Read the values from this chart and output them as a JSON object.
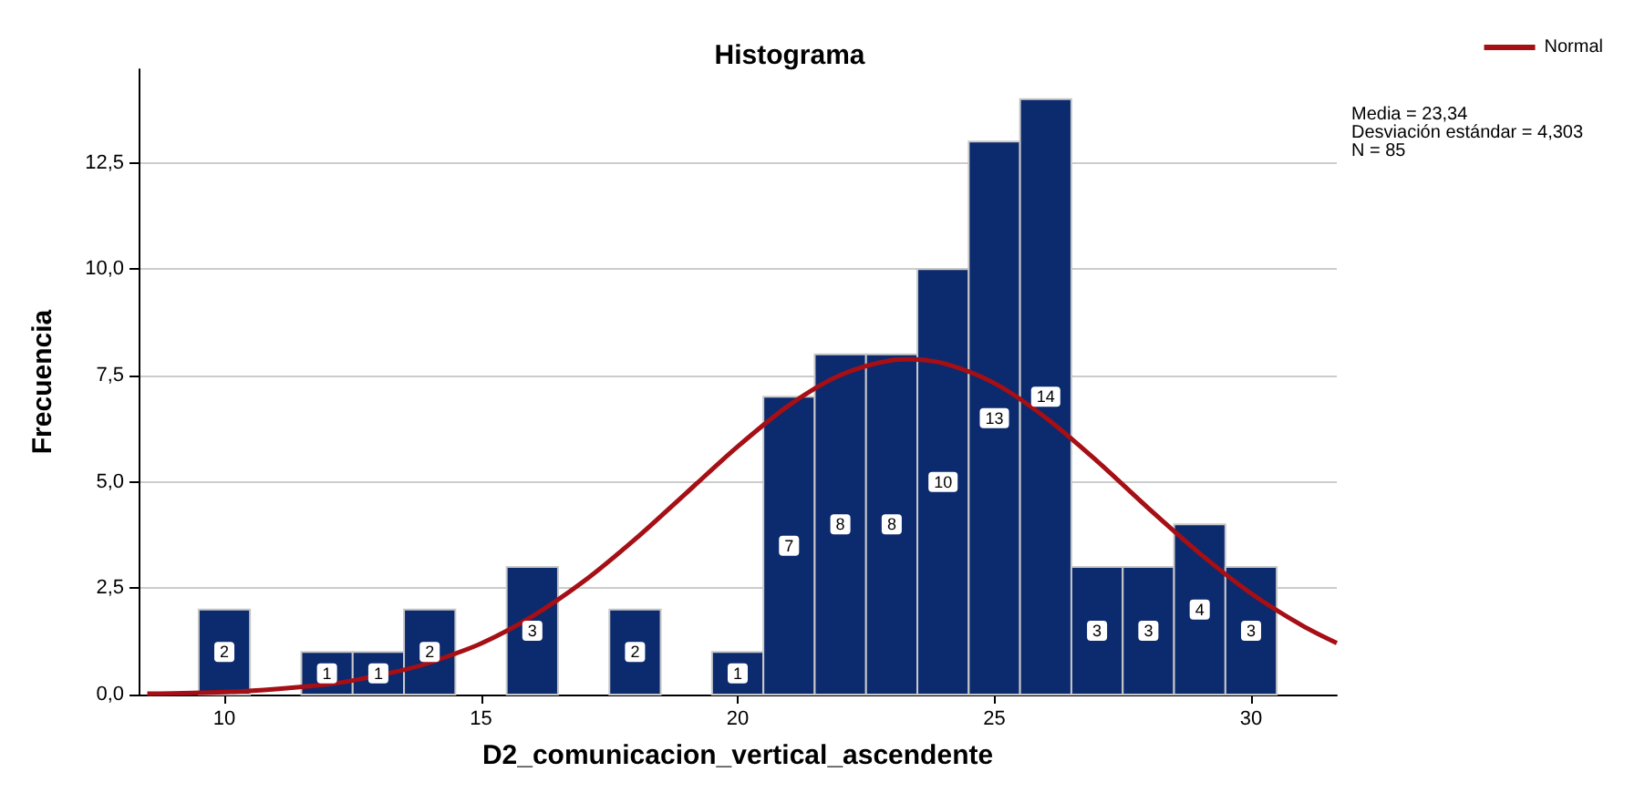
{
  "chart_data": {
    "type": "histogram",
    "title": "Histograma",
    "xlabel": "D2_comunicacion_vertical_ascendente",
    "ylabel": "Frecuencia",
    "bins": [
      9.5,
      10.5,
      11.5,
      12.5,
      13.5,
      14.5,
      15.5,
      16.5,
      17.5,
      18.5,
      19.5,
      20.5,
      21.5,
      22.5,
      23.5,
      24.5,
      25.5,
      26.5,
      27.5,
      28.5,
      29.5,
      30.5
    ],
    "values": [
      2,
      0,
      1,
      1,
      2,
      0,
      3,
      0,
      2,
      0,
      1,
      7,
      8,
      8,
      10,
      13,
      14,
      3,
      3,
      4,
      3
    ],
    "value_labels": [
      "2",
      null,
      "1",
      "1",
      "2",
      null,
      "3",
      null,
      "2",
      null,
      "1",
      "7",
      "8",
      "8",
      "10",
      "13",
      "14",
      "3",
      "3",
      "4",
      "3"
    ],
    "color": "#0c2a6e",
    "series": [
      {
        "type": "line",
        "name": "Normal",
        "color": "#a50f15",
        "x": [
          8.5,
          10,
          11,
          12,
          12.5,
          13.5,
          14,
          15,
          16,
          17,
          18,
          19,
          20,
          21,
          22,
          23,
          23.34,
          24,
          25,
          26,
          27,
          28,
          29,
          30,
          31,
          31.67
        ],
        "values": [
          0.02,
          0.06,
          0.13,
          0.24,
          0.33,
          0.58,
          0.75,
          1.2,
          1.84,
          2.66,
          3.65,
          4.74,
          5.83,
          6.8,
          7.51,
          7.86,
          7.88,
          7.79,
          7.32,
          6.51,
          5.49,
          4.38,
          3.32,
          2.38,
          1.62,
          1.21
        ]
      }
    ],
    "xlim": [
      8.33,
      31.67
    ],
    "xticks": [
      10,
      15,
      20,
      25,
      30
    ],
    "ylim": [
      0,
      14.7
    ],
    "yticks": [
      {
        "value": 0,
        "label": "0,0"
      },
      {
        "value": 2.5,
        "label": "2,5"
      },
      {
        "value": 5,
        "label": "5,0"
      },
      {
        "value": 7.5,
        "label": "7,5"
      },
      {
        "value": 10,
        "label": "10,0"
      },
      {
        "value": 12.5,
        "label": "12,5"
      }
    ],
    "grid": "y",
    "legend": "top right",
    "marker": "none",
    "line_style": "solid",
    "annotations": [
      "Media = 23,34",
      "Desviación estándar = 4,303",
      "N = 85"
    ]
  }
}
